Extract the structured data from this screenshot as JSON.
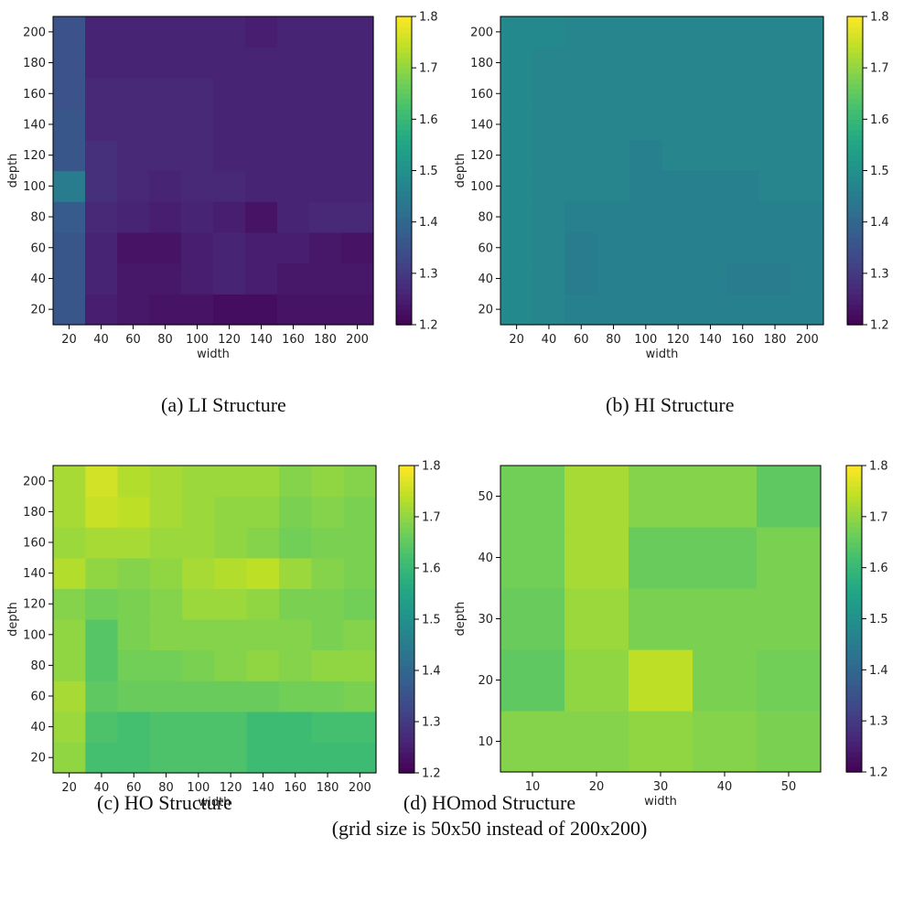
{
  "figure": {
    "colormap": "viridis",
    "color_range": [
      1.2,
      1.8
    ],
    "colorbar_ticks": [
      "1.2",
      "1.3",
      "1.4",
      "1.5",
      "1.6",
      "1.7",
      "1.8"
    ]
  },
  "captions": {
    "a": "(a)  LI Structure",
    "b": "(b) HI Structure",
    "c": "(c) HO Structure",
    "d_line1": "(d) HOmod Structure",
    "d_line2": "(grid size is 50x50 instead of 200x200)"
  },
  "chart_data": [
    {
      "type": "heatmap",
      "title": "",
      "xlabel": "width",
      "ylabel": "depth",
      "x_ticks": [
        20,
        40,
        60,
        80,
        100,
        120,
        140,
        160,
        180,
        200
      ],
      "y_ticks": [
        20,
        40,
        60,
        80,
        100,
        120,
        140,
        160,
        180,
        200
      ],
      "x": [
        10,
        30,
        50,
        70,
        90,
        110,
        130,
        150,
        170,
        190,
        210
      ],
      "y": [
        10,
        30,
        50,
        70,
        90,
        110,
        130,
        150,
        170,
        190,
        210
      ],
      "values": [
        [
          1.36,
          1.25,
          1.24,
          1.23,
          1.23,
          1.22,
          1.22,
          1.23,
          1.23,
          1.23,
          1.24
        ],
        [
          1.36,
          1.26,
          1.24,
          1.24,
          1.25,
          1.26,
          1.25,
          1.24,
          1.24,
          1.24,
          1.24
        ],
        [
          1.36,
          1.26,
          1.23,
          1.23,
          1.25,
          1.26,
          1.25,
          1.25,
          1.24,
          1.23,
          1.25
        ],
        [
          1.37,
          1.27,
          1.26,
          1.25,
          1.26,
          1.25,
          1.23,
          1.26,
          1.27,
          1.27,
          1.25
        ],
        [
          1.45,
          1.28,
          1.27,
          1.26,
          1.27,
          1.27,
          1.26,
          1.26,
          1.26,
          1.26,
          1.26
        ],
        [
          1.36,
          1.28,
          1.27,
          1.27,
          1.27,
          1.26,
          1.26,
          1.26,
          1.26,
          1.26,
          1.25
        ],
        [
          1.36,
          1.27,
          1.27,
          1.27,
          1.27,
          1.26,
          1.26,
          1.26,
          1.26,
          1.26,
          1.25
        ],
        [
          1.35,
          1.27,
          1.27,
          1.27,
          1.27,
          1.26,
          1.26,
          1.26,
          1.26,
          1.26,
          1.24
        ],
        [
          1.35,
          1.26,
          1.26,
          1.26,
          1.26,
          1.26,
          1.26,
          1.26,
          1.26,
          1.26,
          1.23
        ],
        [
          1.35,
          1.26,
          1.26,
          1.26,
          1.26,
          1.26,
          1.25,
          1.26,
          1.26,
          1.26,
          1.24
        ],
        [
          1.35,
          1.26,
          1.26,
          1.26,
          1.25,
          1.25,
          1.23,
          1.25,
          1.25,
          1.25,
          1.25
        ]
      ],
      "colorbar": {
        "range": [
          1.2,
          1.8
        ]
      }
    },
    {
      "type": "heatmap",
      "title": "",
      "xlabel": "width",
      "ylabel": "depth",
      "x_ticks": [
        20,
        40,
        60,
        80,
        100,
        120,
        140,
        160,
        180,
        200
      ],
      "y_ticks": [
        20,
        40,
        60,
        80,
        100,
        120,
        140,
        160,
        180,
        200
      ],
      "x": [
        10,
        30,
        50,
        70,
        90,
        110,
        130,
        150,
        170,
        190,
        210
      ],
      "y": [
        10,
        30,
        50,
        70,
        90,
        110,
        130,
        150,
        170,
        190,
        210
      ],
      "values": [
        [
          1.48,
          1.47,
          1.46,
          1.46,
          1.46,
          1.46,
          1.46,
          1.46,
          1.46,
          1.46,
          1.46
        ],
        [
          1.48,
          1.47,
          1.45,
          1.46,
          1.46,
          1.46,
          1.46,
          1.45,
          1.45,
          1.46,
          1.46
        ],
        [
          1.48,
          1.47,
          1.45,
          1.46,
          1.46,
          1.46,
          1.46,
          1.46,
          1.46,
          1.46,
          1.47
        ],
        [
          1.48,
          1.47,
          1.46,
          1.46,
          1.46,
          1.46,
          1.46,
          1.46,
          1.46,
          1.46,
          1.46
        ],
        [
          1.48,
          1.47,
          1.47,
          1.47,
          1.46,
          1.46,
          1.46,
          1.46,
          1.47,
          1.47,
          1.47
        ],
        [
          1.48,
          1.47,
          1.47,
          1.47,
          1.46,
          1.47,
          1.47,
          1.47,
          1.47,
          1.47,
          1.47
        ],
        [
          1.48,
          1.47,
          1.47,
          1.47,
          1.47,
          1.47,
          1.47,
          1.47,
          1.47,
          1.47,
          1.47
        ],
        [
          1.48,
          1.47,
          1.47,
          1.47,
          1.47,
          1.47,
          1.47,
          1.47,
          1.47,
          1.47,
          1.47
        ],
        [
          1.48,
          1.47,
          1.47,
          1.47,
          1.47,
          1.47,
          1.47,
          1.47,
          1.47,
          1.47,
          1.47
        ],
        [
          1.48,
          1.48,
          1.47,
          1.47,
          1.47,
          1.47,
          1.47,
          1.47,
          1.47,
          1.47,
          1.47
        ],
        [
          1.48,
          1.48,
          1.48,
          1.48,
          1.48,
          1.48,
          1.48,
          1.48,
          1.48,
          1.48,
          1.48
        ]
      ],
      "colorbar": {
        "range": [
          1.2,
          1.8
        ]
      }
    },
    {
      "type": "heatmap",
      "title": "",
      "xlabel": "width",
      "ylabel": "depth",
      "x_ticks": [
        20,
        40,
        60,
        80,
        100,
        120,
        140,
        160,
        180,
        200
      ],
      "y_ticks": [
        20,
        40,
        60,
        80,
        100,
        120,
        140,
        160,
        180,
        200
      ],
      "x": [
        10,
        30,
        50,
        70,
        90,
        110,
        130,
        150,
        170,
        190,
        210
      ],
      "y": [
        10,
        30,
        50,
        70,
        90,
        110,
        130,
        150,
        170,
        190,
        210
      ],
      "values": [
        [
          1.7,
          1.62,
          1.62,
          1.63,
          1.63,
          1.63,
          1.61,
          1.61,
          1.61,
          1.61,
          1.61
        ],
        [
          1.71,
          1.63,
          1.62,
          1.63,
          1.63,
          1.63,
          1.61,
          1.61,
          1.62,
          1.62,
          1.61
        ],
        [
          1.72,
          1.65,
          1.66,
          1.66,
          1.66,
          1.66,
          1.66,
          1.67,
          1.67,
          1.68,
          1.68
        ],
        [
          1.7,
          1.64,
          1.67,
          1.67,
          1.68,
          1.69,
          1.7,
          1.69,
          1.7,
          1.7,
          1.72
        ],
        [
          1.7,
          1.64,
          1.68,
          1.69,
          1.69,
          1.69,
          1.69,
          1.69,
          1.68,
          1.69,
          1.7
        ],
        [
          1.69,
          1.67,
          1.68,
          1.69,
          1.71,
          1.71,
          1.7,
          1.68,
          1.68,
          1.67,
          1.67
        ],
        [
          1.73,
          1.7,
          1.69,
          1.7,
          1.72,
          1.73,
          1.74,
          1.71,
          1.69,
          1.68,
          1.68
        ],
        [
          1.71,
          1.72,
          1.72,
          1.71,
          1.71,
          1.7,
          1.69,
          1.67,
          1.68,
          1.68,
          1.67
        ],
        [
          1.72,
          1.75,
          1.74,
          1.72,
          1.71,
          1.7,
          1.7,
          1.68,
          1.69,
          1.68,
          1.67
        ],
        [
          1.72,
          1.76,
          1.73,
          1.72,
          1.71,
          1.71,
          1.71,
          1.69,
          1.7,
          1.69,
          1.68
        ],
        [
          1.73,
          1.74,
          1.73,
          1.72,
          1.72,
          1.71,
          1.69,
          1.65,
          1.7,
          1.7,
          1.68
        ]
      ],
      "colorbar": {
        "range": [
          1.2,
          1.8
        ]
      }
    },
    {
      "type": "heatmap",
      "title": "",
      "xlabel": "width",
      "ylabel": "depth",
      "x_ticks": [
        10,
        20,
        30,
        40,
        50
      ],
      "y_ticks": [
        10,
        20,
        30,
        40,
        50
      ],
      "x": [
        5,
        15,
        25,
        35,
        45,
        55
      ],
      "y": [
        5,
        15,
        25,
        35,
        45,
        55
      ],
      "values": [
        [
          1.69,
          1.69,
          1.7,
          1.69,
          1.68
        ],
        [
          1.65,
          1.7,
          1.74,
          1.68,
          1.67
        ],
        [
          1.66,
          1.71,
          1.68,
          1.68,
          1.68
        ],
        [
          1.67,
          1.72,
          1.66,
          1.66,
          1.68
        ],
        [
          1.67,
          1.72,
          1.69,
          1.69,
          1.65
        ]
      ],
      "colorbar": {
        "range": [
          1.2,
          1.8
        ]
      }
    }
  ]
}
